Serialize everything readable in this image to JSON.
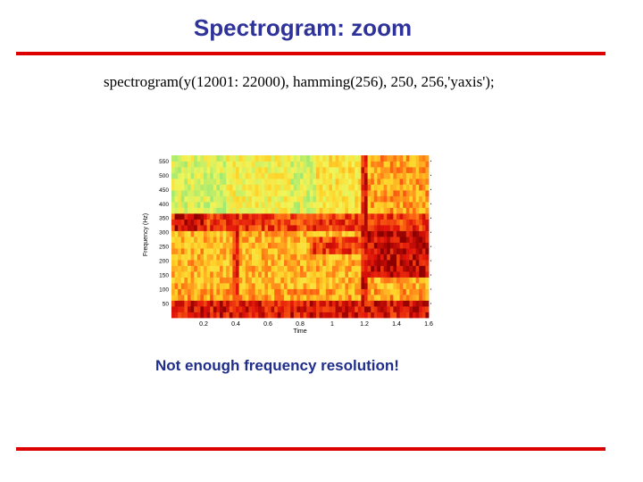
{
  "slide": {
    "title": "Spectrogram: zoom",
    "code": "spectrogram(y(12001: 22000), hamming(256), 250, 256,'yaxis');",
    "caption": "Not enough frequency resolution!"
  },
  "colors": {
    "title": "#2f3399",
    "rule": "#dd0000",
    "caption": "#1f2e8a"
  },
  "chart_data": {
    "type": "heatmap",
    "title": "",
    "xlabel": "Time",
    "ylabel": "Frequency (Hz)",
    "xlim": [
      0,
      1.6
    ],
    "ylim": [
      0,
      570
    ],
    "x_ticks": [
      "0.2",
      "0.4",
      "0.6",
      "0.8",
      "1",
      "1.2",
      "1.4",
      "1.6"
    ],
    "y_ticks": [
      "50",
      "100",
      "150",
      "200",
      "250",
      "300",
      "350",
      "400",
      "450",
      "500",
      "550"
    ],
    "colormap": "hot (dark red = high energy, yellow/green = low energy)",
    "bands_description": [
      {
        "freq_range": [
          360,
          560
        ],
        "intensity": "low (yellow-green)"
      },
      {
        "freq_range": [
          300,
          360
        ],
        "intensity": "high (red)"
      },
      {
        "freq_range": [
          200,
          300
        ],
        "intensity": "medium-high after t=1.2"
      },
      {
        "freq_range": [
          0,
          60
        ],
        "intensity": "high (red)"
      }
    ]
  }
}
